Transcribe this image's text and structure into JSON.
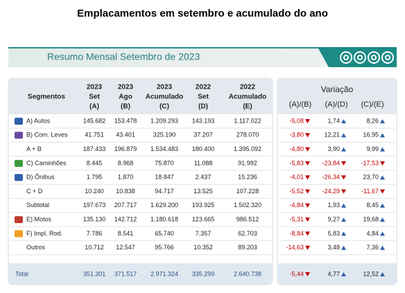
{
  "title": "Emplacamentos em setembro e acumulado do ano",
  "banner": "Resumo Mensal Setembro de 2023",
  "table": {
    "segment_header": "Segmentos",
    "columns": [
      [
        "2023",
        "Set",
        "(A)"
      ],
      [
        "2023",
        "Ago",
        "(B)"
      ],
      [
        "2023",
        "Acumulado",
        "(C)"
      ],
      [
        "2022",
        "Set",
        "(D)"
      ],
      [
        "2022",
        "Acumulado",
        "(E)"
      ]
    ],
    "rows": [
      [
        "A) Autos",
        "145.682",
        "153.478",
        "1.209.293",
        "143.193",
        "1.117.022"
      ],
      [
        "B) Com. Leves",
        "41.751",
        "43.401",
        "325.190",
        "37.207",
        "278.070"
      ],
      [
        "A + B",
        "187.433",
        "196.879",
        "1.534.483",
        "180.400",
        "1.395.092"
      ],
      [
        "C) Caminhões",
        "8.445",
        "8.968",
        "75.870",
        "11.088",
        "91.992"
      ],
      [
        "D) Ônibus",
        "1.795",
        "1.870",
        "18.847",
        "2.437",
        "15.236"
      ],
      [
        "C + D",
        "10.240",
        "10.838",
        "94.717",
        "13.525",
        "107.228"
      ],
      [
        "Subtotal",
        "197.673",
        "207.717",
        "1.629.200",
        "193.925",
        "1.502.320"
      ],
      [
        "E) Motos",
        "135.130",
        "142.712",
        "1.180.618",
        "123.665",
        "986.512"
      ],
      [
        "F) Impl. Rod.",
        "7.786",
        "8.541",
        "65.740",
        "7.357",
        "62.703"
      ],
      [
        "Outros",
        "10.712",
        "12.547",
        "95.766",
        "10.352",
        "89.203"
      ]
    ],
    "total": [
      "Total",
      "351.301",
      "371.517",
      "2.971.324",
      "335.299",
      "2.640.738"
    ]
  },
  "variation": {
    "header": "Variação",
    "columns": [
      "(A)/(B)",
      "(A)/(D)",
      "(C)/(E)"
    ],
    "rows": [
      [
        "-5,08",
        "1,74",
        "8,26"
      ],
      [
        "-3,80",
        "12,21",
        "16,95"
      ],
      [
        "-4,80",
        "3,90",
        "9,99"
      ],
      [
        "-5,83",
        "-23,84",
        "-17,53"
      ],
      [
        "-4,01",
        "-26,34",
        "23,70"
      ],
      [
        "-5,52",
        "-24,29",
        "-11,67"
      ],
      [
        "-4,84",
        "1,93",
        "8,45"
      ],
      [
        "-5,31",
        "9,27",
        "19,68"
      ],
      [
        "-8,84",
        "5,83",
        "4,84"
      ],
      [
        "-14,63",
        "3,48",
        "7,36"
      ]
    ],
    "total": [
      "-5,44",
      "4,77",
      "12,52"
    ]
  }
}
